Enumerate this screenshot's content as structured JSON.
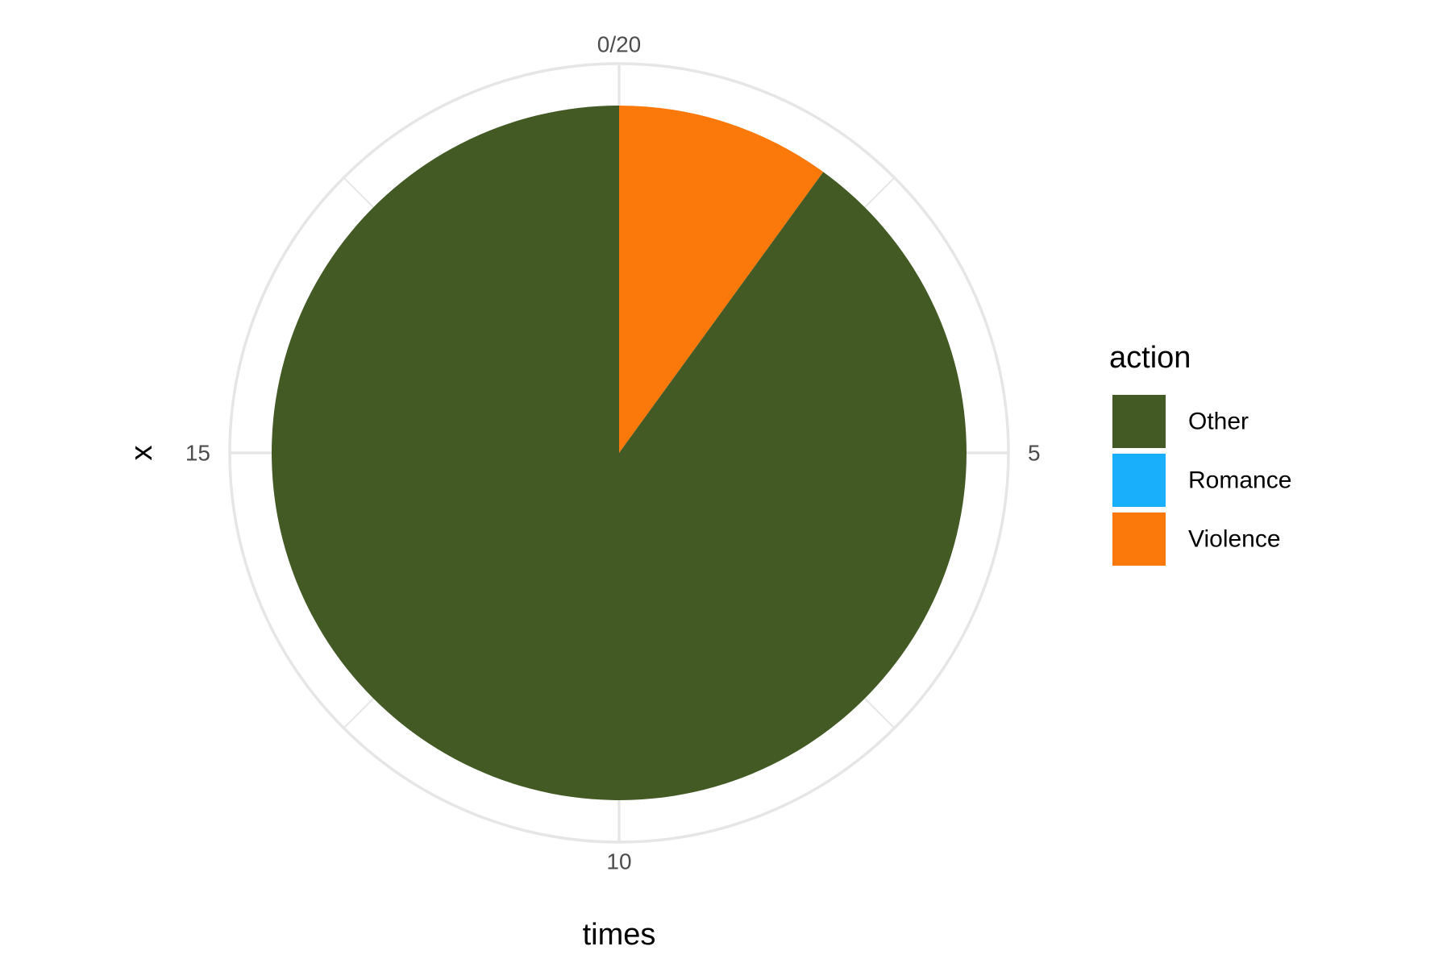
{
  "chart_data": {
    "type": "pie",
    "xlabel": "times",
    "ylabel": "x",
    "legend_title": "action",
    "legend_position": "right",
    "grid": true,
    "theta_range": [
      0,
      20
    ],
    "theta_ticks": [
      "0/20",
      "5",
      "10",
      "15"
    ],
    "categories": [
      "Other",
      "Romance",
      "Violence"
    ],
    "values": [
      18,
      0,
      2
    ],
    "colors": {
      "Other": "#445A25",
      "Romance": "#1AAFFA",
      "Violence": "#FB790B"
    }
  }
}
